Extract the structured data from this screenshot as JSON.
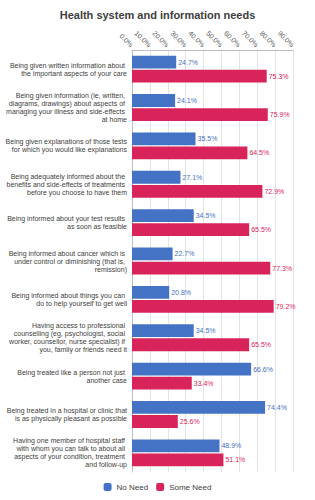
{
  "chart_data": {
    "type": "bar",
    "orientation": "horizontal",
    "title": "Health system and information needs",
    "categories": [
      "Being given written information about the important aspects of your care",
      "Being given information (ie, written, diagrams, drawings) about aspects of managing your illness and side-effects at home",
      "Being given explanations of those tests for which you would like explanations",
      "Being adequately informed about the benefits and side-effects of treatments before you choose to have them",
      "Being informed about your test results as soon as feasible",
      "Being informed about cancer which is under control or diminishing (that is, remission)",
      "Being informed about things you can do to help yourself to get well",
      "Having access to professional counselling (eg, psychologist, social worker, counsellor, nurse specialist) if you, family or friends need it",
      "Being treated like a person not just another case",
      "Being treated in a hospital or clinic that is as physically pleasant as possible",
      "Having one member of hospital staff with whom you can talk to about all aspects of your condition, treatment and follow-up"
    ],
    "series": [
      {
        "name": "No Need",
        "color": "#4472c4",
        "values": [
          24.7,
          24.1,
          35.5,
          27.1,
          34.5,
          22.7,
          20.8,
          34.5,
          66.6,
          74.4,
          48.9
        ],
        "value_labels": [
          "24.7%",
          "24.1%",
          "35.5%",
          "27.1%",
          "34.5%",
          "22.7%",
          "20.8%",
          "34.5%",
          "66.6%",
          "74.4%",
          "48.9%"
        ]
      },
      {
        "name": "Some Need",
        "color": "#d9245b",
        "values": [
          75.3,
          75.9,
          64.5,
          72.9,
          65.5,
          77.3,
          79.2,
          65.5,
          33.4,
          25.6,
          51.1
        ],
        "value_labels": [
          "75.3%",
          "75.9%",
          "64.5%",
          "72.9%",
          "65.5%",
          "77.3%",
          "79.2%",
          "65.5%",
          "33.4%",
          "25.6%",
          "51.1%"
        ]
      }
    ],
    "xlim": [
      0,
      90
    ],
    "xticks": [
      {
        "value": 0,
        "label": "0.0%"
      },
      {
        "value": 10,
        "label": "10.0%"
      },
      {
        "value": 20,
        "label": "20.0%"
      },
      {
        "value": 30,
        "label": "30.0%"
      },
      {
        "value": 40,
        "label": "40.0%"
      },
      {
        "value": 50,
        "label": "50.0%"
      },
      {
        "value": 60,
        "label": "60.0%"
      },
      {
        "value": 70,
        "label": "70.0%"
      },
      {
        "value": 80,
        "label": "80.0%"
      },
      {
        "value": 90,
        "label": "90.0%"
      }
    ],
    "grid": true,
    "legend": "bottom",
    "data_labels": true
  }
}
